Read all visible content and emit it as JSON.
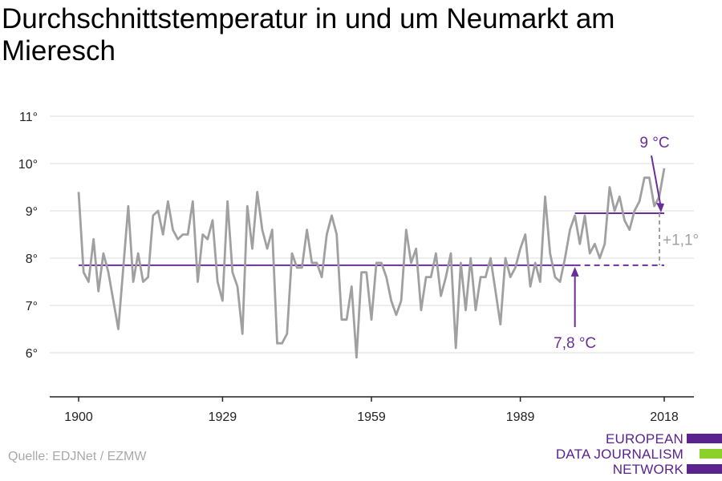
{
  "title": "Durchschnittstemperatur in und um Neumarkt am Mieresch",
  "source": "Quelle: EDJNet / EZMW",
  "logo": {
    "line1": "EUROPEAN",
    "line2": "DATA JOURNALISM",
    "line3": "NETWORK",
    "colors": [
      "#5a2390",
      "#8cd12a",
      "#5a2390"
    ]
  },
  "colors": {
    "series": "#a0a0a0",
    "accent": "#6a2e9a",
    "grid": "#dcdcdc",
    "axis": "#222222",
    "diff": "#a0a0a0"
  },
  "chart_data": {
    "type": "line",
    "title": "Durchschnittstemperatur in und um Neumarkt am Mieresch",
    "xlabel": "",
    "ylabel": "",
    "xlim": [
      1900,
      2018
    ],
    "ylim": [
      5.0,
      11.5
    ],
    "x_ticks": [
      1900,
      1929,
      1959,
      1989,
      2018
    ],
    "y_ticks": [
      6,
      7,
      8,
      9,
      10,
      11
    ],
    "y_tick_labels": [
      "6°",
      "7°",
      "8°",
      "9°",
      "10°",
      "11°"
    ],
    "grid": true,
    "series": [
      {
        "x": [
          1900,
          1901,
          1902,
          1903,
          1904,
          1905,
          1906,
          1907,
          1908,
          1909,
          1910,
          1911,
          1912,
          1913,
          1914,
          1915,
          1916,
          1917,
          1918,
          1919,
          1920,
          1921,
          1922,
          1923,
          1924,
          1925,
          1926,
          1927,
          1928,
          1929,
          1930,
          1931,
          1932,
          1933,
          1934,
          1935,
          1936,
          1937,
          1938,
          1939,
          1940,
          1941,
          1942,
          1943,
          1944,
          1945,
          1946,
          1947,
          1948,
          1949,
          1950,
          1951,
          1952,
          1953,
          1954,
          1955,
          1956,
          1957,
          1958,
          1959,
          1960,
          1961,
          1962,
          1963,
          1964,
          1965,
          1966,
          1967,
          1968,
          1969,
          1970,
          1971,
          1972,
          1973,
          1974,
          1975,
          1976,
          1977,
          1978,
          1979,
          1980,
          1981,
          1982,
          1983,
          1984,
          1985,
          1986,
          1987,
          1988,
          1989,
          1990,
          1991,
          1992,
          1993,
          1994,
          1995,
          1996,
          1997,
          1998,
          1999,
          2000,
          2001,
          2002,
          2003,
          2004,
          2005,
          2006,
          2007,
          2008,
          2009,
          2010,
          2011,
          2012,
          2013,
          2014,
          2015,
          2016,
          2017,
          2018
        ],
        "values": [
          9.4,
          7.7,
          7.5,
          8.4,
          7.3,
          8.1,
          7.7,
          7.1,
          6.5,
          7.8,
          9.1,
          7.5,
          8.1,
          7.5,
          7.6,
          8.9,
          9.0,
          8.5,
          9.2,
          8.6,
          8.4,
          8.5,
          8.5,
          9.2,
          7.5,
          8.5,
          8.4,
          8.8,
          7.5,
          7.1,
          9.2,
          7.7,
          7.4,
          6.4,
          9.1,
          8.2,
          9.4,
          8.6,
          8.2,
          8.6,
          6.2,
          6.2,
          6.4,
          8.1,
          7.8,
          7.8,
          8.6,
          7.9,
          7.9,
          7.6,
          8.5,
          8.9,
          8.5,
          6.7,
          6.7,
          7.4,
          5.9,
          7.7,
          7.7,
          6.7,
          7.9,
          7.9,
          7.6,
          7.1,
          6.8,
          7.1,
          8.6,
          7.9,
          8.2,
          6.9,
          7.6,
          7.6,
          8.1,
          7.2,
          7.6,
          8.1,
          6.1,
          7.9,
          6.9,
          8.0,
          6.9,
          7.6,
          7.6,
          8.0,
          7.3,
          6.6,
          8.0,
          7.6,
          7.8,
          8.2,
          8.5,
          7.4,
          7.9,
          7.5,
          9.3,
          8.1,
          7.6,
          7.5,
          8.0,
          8.6,
          8.9,
          8.3,
          8.9,
          8.1,
          8.3,
          8.0,
          8.3,
          9.5,
          9.0,
          9.3,
          8.8,
          8.6,
          9.0,
          9.2,
          9.7,
          9.7,
          9.1,
          9.3,
          9.9
        ]
      }
    ],
    "reference_lines": [
      {
        "label": "7,8 °C",
        "value": 7.85,
        "x_from": 1900,
        "x_to": 2018,
        "dashed_from": 2000
      },
      {
        "label": "9 °C",
        "value": 8.95,
        "x_from": 2000,
        "x_to": 2018
      }
    ],
    "difference_label": "+1,1°"
  }
}
